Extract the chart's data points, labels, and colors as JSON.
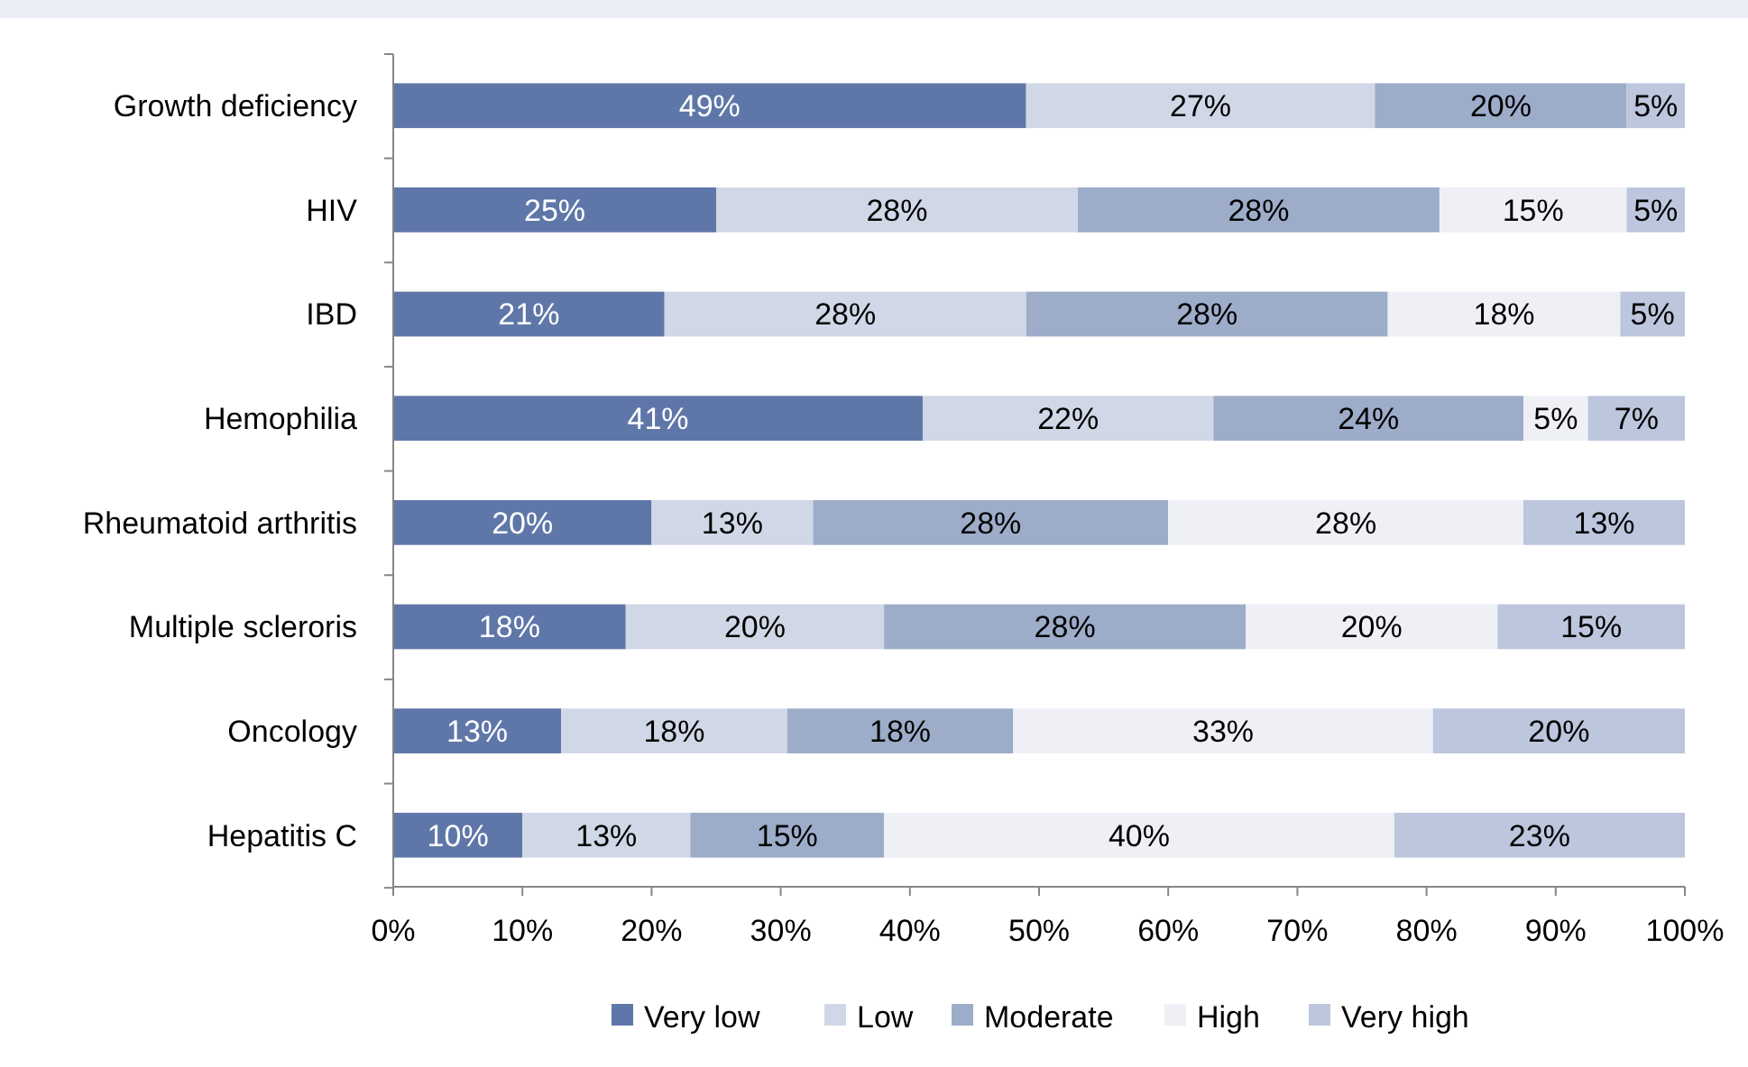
{
  "chart_data": {
    "type": "bar",
    "orientation": "horizontal",
    "stacked": true,
    "categories": [
      "Growth deficiency",
      "HIV",
      "IBD",
      "Hemophilia",
      "Rheumatoid arthritis",
      "Multiple scleroris",
      "Oncology",
      "Hepatitis C"
    ],
    "series": [
      {
        "name": "Very low",
        "color": "#5f77a8",
        "values": [
          49,
          25,
          21,
          41,
          20,
          18,
          13,
          10
        ],
        "value_labels": [
          "49%",
          "25%",
          "21%",
          "41%",
          "20%",
          "18%",
          "13%",
          "10%"
        ]
      },
      {
        "name": "Low",
        "color": "#d0d7e6",
        "values": [
          27,
          28,
          28,
          22.5,
          12.5,
          20,
          17.5,
          13
        ],
        "value_labels": [
          "27%",
          "28%",
          "28%",
          "22%",
          "13%",
          "20%",
          "18%",
          "13%"
        ]
      },
      {
        "name": "Moderate",
        "color": "#9cacc9",
        "values": [
          19.5,
          28,
          28,
          24,
          27.5,
          28,
          17.5,
          15
        ],
        "value_labels": [
          "20%",
          "28%",
          "28%",
          "24%",
          "28%",
          "28%",
          "18%",
          "15%"
        ]
      },
      {
        "name": "High",
        "color": "#eef0f6",
        "values": [
          0,
          14.5,
          18,
          5,
          27.5,
          19.5,
          32.5,
          39.5
        ],
        "value_labels": [
          null,
          "15%",
          "18%",
          "5%",
          "28%",
          "20%",
          "33%",
          "40%"
        ]
      },
      {
        "name": "Very high",
        "color": "#bcc6dd",
        "values": [
          4.5,
          4.5,
          5,
          7.5,
          12.5,
          14.5,
          19.5,
          22.5
        ],
        "value_labels": [
          "5%",
          "5%",
          "5%",
          "7%",
          "13%",
          "15%",
          "20%",
          "23%"
        ]
      }
    ],
    "xlim": [
      0,
      100
    ],
    "xticks": [
      {
        "value": 0,
        "label": "0%"
      },
      {
        "value": 10,
        "label": "10%"
      },
      {
        "value": 20,
        "label": "20%"
      },
      {
        "value": 30,
        "label": "30%"
      },
      {
        "value": 40,
        "label": "40%"
      },
      {
        "value": 50,
        "label": "50%"
      },
      {
        "value": 60,
        "label": "60%"
      },
      {
        "value": 70,
        "label": "70%"
      },
      {
        "value": 80,
        "label": "80%"
      },
      {
        "value": 90,
        "label": "90%"
      },
      {
        "value": 100,
        "label": "100%"
      }
    ],
    "grid": false,
    "legend": "bottom"
  }
}
